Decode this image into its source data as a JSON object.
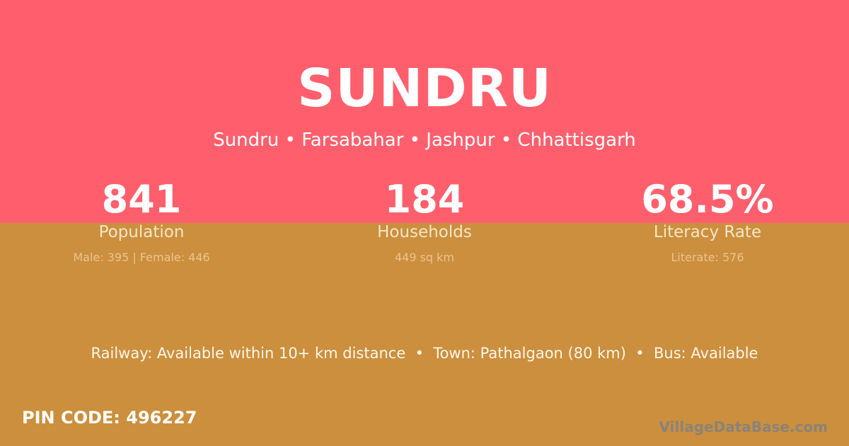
{
  "header": {
    "title": "SUNDRU",
    "subtitle": "Sundru • Farsabahar • Jashpur • Chhattisgarh"
  },
  "stats": [
    {
      "value": "841",
      "label": "Population",
      "sub": "Male: 395 | Female: 446"
    },
    {
      "value": "184",
      "label": "Households",
      "sub": "449 sq km"
    },
    {
      "value": "68.5%",
      "label": "Literacy Rate",
      "sub": "Literate: 576"
    }
  ],
  "facilities": "Railway: Available within 10+ km distance  •  Town: Pathalgaon (80 km)  •  Bus: Available",
  "pin_code": "PIN CODE: 496227",
  "brand": "VillageDataBase.com",
  "colors": {
    "top": "#ff5f6d",
    "bottom": "#cb8f3e"
  }
}
